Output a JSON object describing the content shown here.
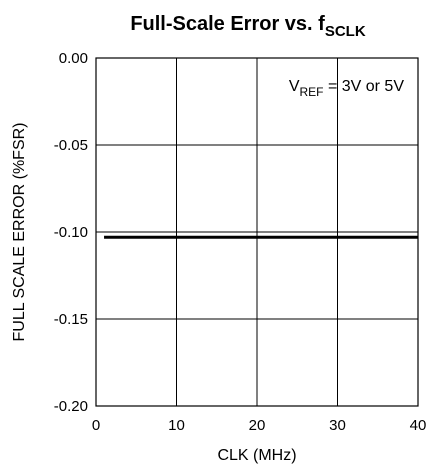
{
  "chart_data": {
    "type": "line",
    "title": {
      "main": "Full-Scale Error vs. f",
      "sub": "SCLK"
    },
    "xlabel": "CLK (MHz)",
    "ylabel": "FULL SCALE ERROR (%FSR)",
    "xlim": [
      0,
      40
    ],
    "ylim": [
      -0.2,
      0.0
    ],
    "x_ticks": [
      0,
      10,
      20,
      30,
      40
    ],
    "x_tick_labels": [
      "0",
      "10",
      "20",
      "30",
      "40"
    ],
    "y_ticks": [
      0.0,
      -0.05,
      -0.1,
      -0.15,
      -0.2
    ],
    "y_tick_labels": [
      "0.00",
      "-0.05",
      "-0.10",
      "-0.15",
      "-0.20"
    ],
    "grid": true,
    "annotation": {
      "prefix": "V",
      "sub": "REF",
      "suffix": " = 3V or 5V"
    },
    "series": [
      {
        "x": [
          1,
          40
        ],
        "y": [
          -0.103,
          -0.103
        ]
      }
    ]
  }
}
